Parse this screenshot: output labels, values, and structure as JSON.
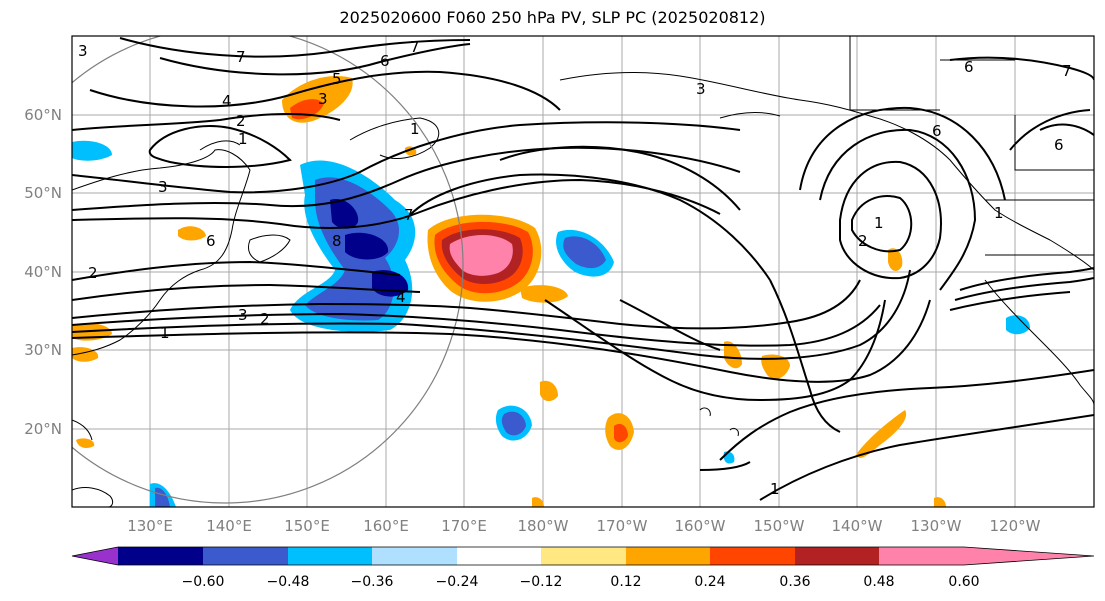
{
  "title": "2025020600 F060 250 hPa PV, SLP PC (2025020812)",
  "lat_labels": [
    "60°N",
    "50°N",
    "40°N",
    "30°N",
    "20°N"
  ],
  "lon_labels": [
    "130°E",
    "140°E",
    "150°E",
    "160°E",
    "170°E",
    "180°W",
    "170°W",
    "160°W",
    "150°W",
    "140°W",
    "130°W",
    "120°W"
  ],
  "colorbar": {
    "colors": [
      "#9932cc",
      "#00008b",
      "#3a5acd",
      "#00bfff",
      "#b0e0ff",
      "#ffffff",
      "#ffe882",
      "#ffa500",
      "#ff4500",
      "#b22222",
      "#ff82ab"
    ],
    "tick_labels": [
      "−0.60",
      "−0.48",
      "−0.36",
      "−0.24",
      "−0.12",
      "0.12",
      "0.24",
      "0.36",
      "0.48",
      "0.60"
    ]
  },
  "contour_labels": [
    "7",
    "6",
    "7",
    "4",
    "3",
    "2",
    "1",
    "3",
    "5",
    "3",
    "1",
    "6",
    "7",
    "8",
    "4",
    "3",
    "2",
    "1",
    "6",
    "1",
    "2",
    "6",
    "1",
    "7",
    "6",
    "3",
    "2",
    "1"
  ]
}
